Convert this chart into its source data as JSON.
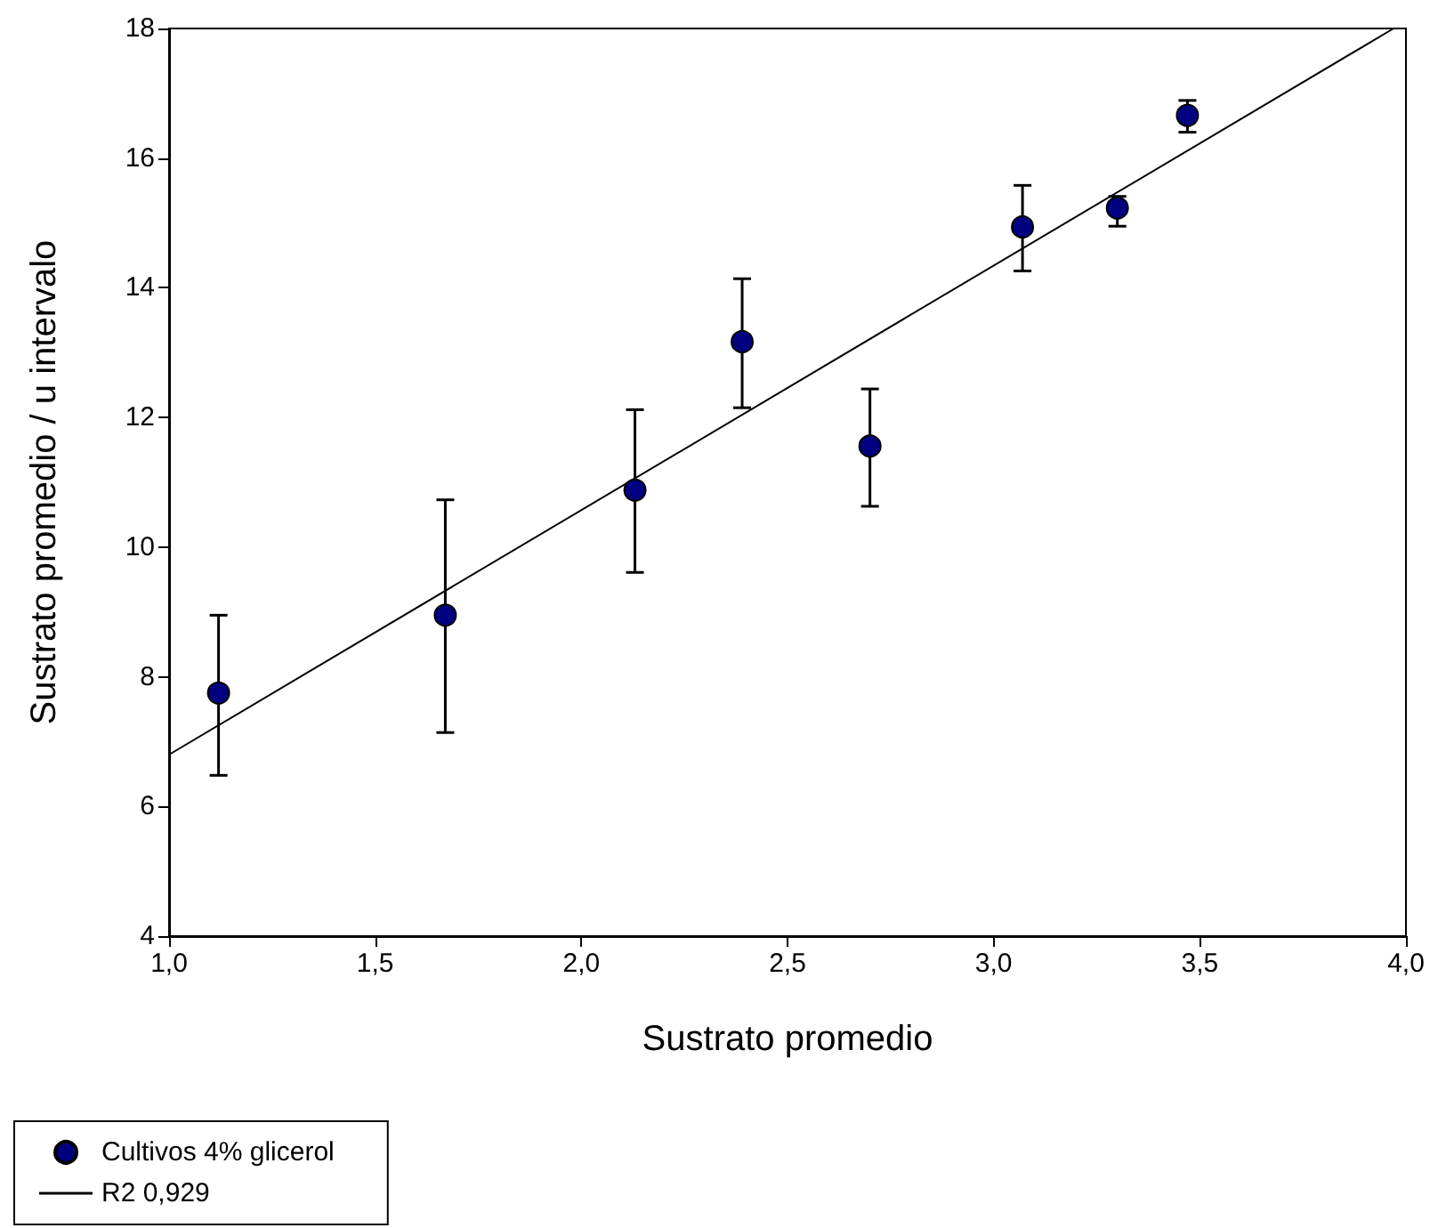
{
  "chart_data": {
    "type": "scatter",
    "xlabel": "Sustrato promedio",
    "ylabel": "Sustrato promedio / u intervalo",
    "xlim": [
      1,
      4
    ],
    "xticks": [
      {
        "value": 1,
        "label": "1,0"
      },
      {
        "value": 1.5,
        "label": "1,5"
      },
      {
        "value": 2,
        "label": "2,0"
      },
      {
        "value": 2.5,
        "label": "2,5"
      },
      {
        "value": 3,
        "label": "3,0"
      },
      {
        "value": 3.5,
        "label": "3,5"
      },
      {
        "value": 4,
        "label": "4,0"
      }
    ],
    "ylim": [
      4,
      18
    ],
    "yticks": [
      4,
      6,
      8,
      10,
      12,
      14,
      16,
      18
    ],
    "legend": "bottom left",
    "series": [
      {
        "name": "Cultivos 4% glicerol",
        "marker": "circle",
        "color": "#000080",
        "x": [
          1.12,
          1.67,
          2.13,
          2.39,
          2.7,
          3.07,
          3.3,
          3.47
        ],
        "values": [
          7.75,
          8.95,
          10.88,
          13.17,
          11.56,
          14.94,
          15.23,
          16.66
        ],
        "errors": [
          [
            6.48,
            8.95
          ],
          [
            7.14,
            10.73
          ],
          [
            9.61,
            12.12
          ],
          [
            12.15,
            14.14
          ],
          [
            10.63,
            12.44
          ],
          [
            14.26,
            15.58
          ],
          [
            14.95,
            15.41
          ],
          [
            16.4,
            16.89
          ]
        ]
      },
      {
        "name": "R2 0,929",
        "type": "line",
        "marker": "none",
        "line_style": "solid",
        "color": "#000000",
        "x": [
          1.0,
          3.97
        ],
        "values": [
          6.8,
          18
        ]
      }
    ]
  }
}
